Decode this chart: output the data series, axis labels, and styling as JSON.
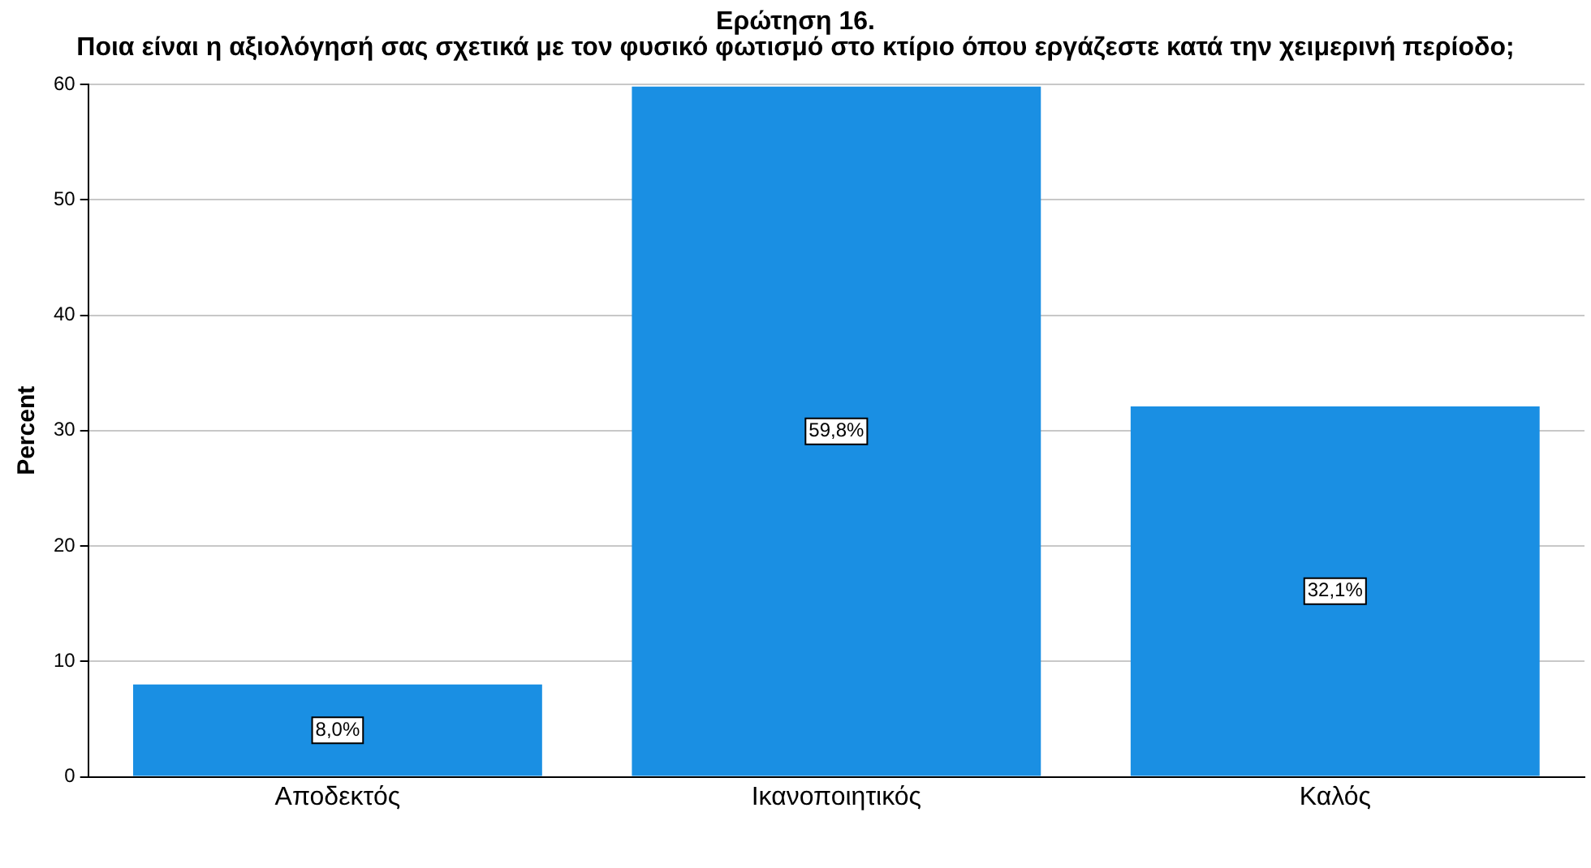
{
  "chart_data": {
    "type": "bar",
    "title": "Ερώτηση 16.",
    "subtitle": "Ποια είναι η αξιολόγησή σας σχετικά με τον φυσικό φωτισμό στο κτίριο όπου εργάζεστε κατά την χειμερινή περίοδο;",
    "ylabel": "Percent",
    "categories": [
      "Αποδεκτός",
      "Ικανοποιητικός",
      "Καλός"
    ],
    "values": [
      8.0,
      59.8,
      32.1
    ],
    "value_labels": [
      "8,0%",
      "59,8%",
      "32,1%"
    ],
    "color": "#1a8fe3",
    "ylim": [
      0,
      60
    ],
    "yticks": [
      0,
      10,
      20,
      30,
      40,
      50,
      60
    ],
    "grid": "y",
    "legend": false
  }
}
